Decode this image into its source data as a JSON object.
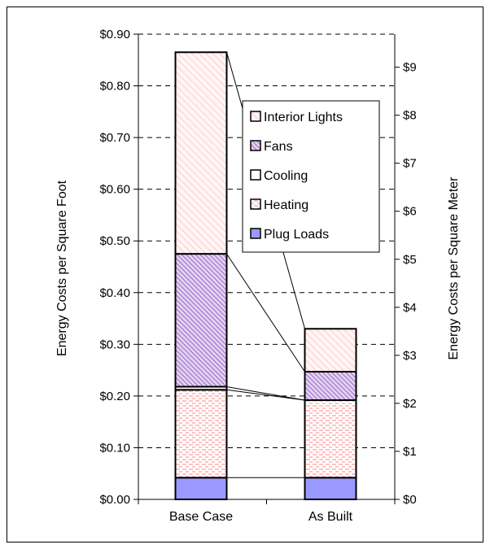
{
  "chart_data": {
    "type": "bar",
    "stacked": true,
    "categories": [
      "Base Case",
      "As Built"
    ],
    "series": [
      {
        "name": "Plug Loads",
        "values": [
          0.042,
          0.042
        ],
        "color": "#9999ff",
        "pattern": "solid"
      },
      {
        "name": "Heating",
        "values": [
          0.17,
          0.15
        ],
        "color": "#ff9999",
        "pattern": "horizontal-dashes"
      },
      {
        "name": "Cooling",
        "values": [
          0.006,
          0.0
        ],
        "color": "#ffffff",
        "pattern": "none"
      },
      {
        "name": "Fans",
        "values": [
          0.257,
          0.055
        ],
        "color": "#9966cc",
        "pattern": "dense-diagonal"
      },
      {
        "name": "Interior Lights",
        "values": [
          0.39,
          0.083
        ],
        "color": "#ff9999",
        "pattern": "light-diagonal"
      }
    ],
    "ylabel": "Energy Costs per Square Foot",
    "y2label": "Energy Costs per Square Meter",
    "ylim": [
      0,
      0.9
    ],
    "yticks": [
      "$0.00",
      "$0.10",
      "$0.20",
      "$0.30",
      "$0.40",
      "$0.50",
      "$0.60",
      "$0.70",
      "$0.80",
      "$0.90"
    ],
    "y2ticks": [
      "$0",
      "$1",
      "$2",
      "$3",
      "$4",
      "$5",
      "$6",
      "$7",
      "$8",
      "$9"
    ],
    "y2_per_y": 10.764,
    "grid": "dashed-horizontal",
    "legend_position": "inside-right",
    "legend_order": [
      "Interior Lights",
      "Fans",
      "Cooling",
      "Heating",
      "Plug Loads"
    ],
    "series_lines": true
  }
}
